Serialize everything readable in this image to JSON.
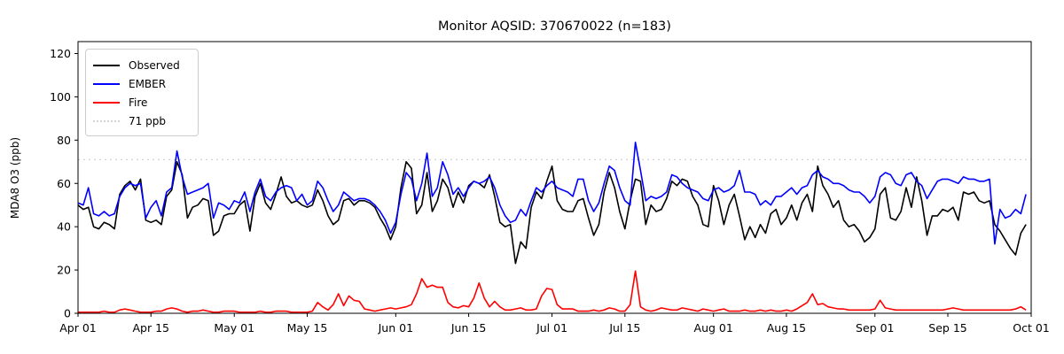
{
  "title": "Monitor AQSID: 370670022 (n=183)",
  "legend": {
    "items": [
      {
        "label": "Observed",
        "color": "#000000",
        "style": "solid"
      },
      {
        "label": "EMBER",
        "color": "#0000ff",
        "style": "solid"
      },
      {
        "label": "Fire",
        "color": "#ff0000",
        "style": "solid"
      },
      {
        "label": "71 ppb",
        "color": "#d3d3d3",
        "style": "dotted"
      }
    ]
  },
  "chart_data": {
    "type": "line",
    "title": "Monitor AQSID: 370670022 (n=183)",
    "xlabel": "",
    "ylabel": "MDA8 O3 (ppb)",
    "n_points": 183,
    "x_start": "Apr 01",
    "x_end": "Oct 01",
    "x_tick_labels": [
      "Apr 01",
      "Apr 15",
      "May 01",
      "May 15",
      "Jun 01",
      "Jun 15",
      "Jul 01",
      "Jul 15",
      "Aug 01",
      "Aug 15",
      "Sep 01",
      "Sep 15",
      "Oct 01"
    ],
    "x_tick_days": [
      0,
      14,
      30,
      44,
      61,
      75,
      91,
      105,
      122,
      136,
      153,
      167,
      183
    ],
    "y_ticks": [
      0,
      20,
      40,
      60,
      80,
      100,
      120
    ],
    "ylim": [
      0,
      125.5
    ],
    "grid": false,
    "legend_position": "upper left",
    "threshold": {
      "value": 71,
      "label": "71 ppb",
      "color": "#d3d3d3",
      "style": "dotted"
    },
    "series": [
      {
        "name": "Observed",
        "color": "#000000",
        "values": [
          50,
          48,
          49,
          40,
          39,
          42,
          41,
          39,
          55,
          59,
          61,
          57,
          62,
          43,
          42,
          43,
          41,
          54,
          57,
          70,
          64,
          44,
          49,
          50,
          53,
          52,
          36,
          38,
          45,
          46,
          46,
          50,
          52,
          38,
          54,
          60,
          51,
          48,
          55,
          63,
          54,
          51,
          52,
          50,
          49,
          50,
          57,
          52,
          45,
          41,
          43,
          52,
          53,
          50,
          52,
          52,
          51,
          49,
          44,
          40,
          34,
          40,
          58,
          70,
          67,
          46,
          50,
          65,
          47,
          52,
          62,
          58,
          49,
          56,
          51,
          59,
          61,
          60,
          58,
          64,
          54,
          42,
          40,
          41,
          23,
          33,
          30,
          49,
          56,
          53,
          61,
          68,
          52,
          48,
          47,
          47,
          52,
          53,
          44,
          36,
          41,
          56,
          65,
          58,
          47,
          39,
          52,
          62,
          61,
          41,
          50,
          47,
          48,
          53,
          61,
          59,
          62,
          61,
          54,
          50,
          41,
          40,
          59,
          52,
          41,
          50,
          55,
          45,
          34,
          40,
          35,
          41,
          37,
          46,
          48,
          41,
          44,
          50,
          43,
          51,
          55,
          47,
          68,
          59,
          55,
          49,
          52,
          43,
          40,
          41,
          38,
          33,
          35,
          39,
          55,
          58,
          44,
          43,
          47,
          58,
          49,
          63,
          52,
          36,
          45,
          45,
          48,
          47,
          49,
          43,
          56,
          55,
          56,
          52,
          51,
          52,
          41,
          38,
          34,
          30,
          27,
          37,
          41
        ]
      },
      {
        "name": "EMBER",
        "color": "#0000ff",
        "values": [
          51,
          50,
          58,
          46,
          45,
          47,
          45,
          46,
          54,
          58,
          60,
          59,
          60,
          44,
          49,
          52,
          45,
          56,
          58,
          75,
          63,
          55,
          56,
          57,
          58,
          60,
          44,
          51,
          50,
          48,
          52,
          51,
          56,
          47,
          56,
          62,
          54,
          52,
          56,
          58,
          59,
          58,
          52,
          55,
          50,
          52,
          61,
          58,
          52,
          47,
          50,
          56,
          54,
          52,
          53,
          53,
          52,
          50,
          47,
          43,
          37,
          42,
          55,
          65,
          62,
          52,
          60,
          74,
          54,
          58,
          70,
          64,
          55,
          58,
          54,
          58,
          61,
          60,
          61,
          63,
          58,
          50,
          45,
          42,
          43,
          48,
          45,
          52,
          58,
          56,
          59,
          61,
          58,
          57,
          56,
          54,
          62,
          62,
          52,
          47,
          51,
          60,
          68,
          66,
          58,
          52,
          50,
          79,
          66,
          52,
          54,
          53,
          54,
          56,
          64,
          63,
          60,
          58,
          57,
          56,
          53,
          52,
          57,
          58,
          56,
          57,
          59,
          66,
          56,
          56,
          55,
          50,
          52,
          50,
          54,
          54,
          56,
          58,
          55,
          58,
          59,
          64,
          66,
          63,
          62,
          60,
          60,
          59,
          57,
          56,
          56,
          54,
          51,
          54,
          63,
          65,
          64,
          60,
          59,
          64,
          65,
          61,
          59,
          53,
          57,
          61,
          62,
          62,
          61,
          60,
          63,
          62,
          62,
          61,
          61,
          62,
          32,
          48,
          44,
          45,
          48,
          46,
          55
        ]
      },
      {
        "name": "Fire",
        "color": "#ff0000",
        "values": [
          0.5,
          0.5,
          0.5,
          0.5,
          0.5,
          1,
          0.5,
          0.5,
          1.5,
          2,
          1.5,
          1,
          0.5,
          0.5,
          0.5,
          1,
          1,
          2,
          2.5,
          2,
          1,
          0.5,
          1,
          1,
          1.5,
          1,
          0.5,
          0.5,
          1,
          1,
          1,
          0.5,
          0.5,
          0.5,
          0.5,
          1,
          0.5,
          0.5,
          1,
          1,
          1,
          0.5,
          0.5,
          0.5,
          0.5,
          1,
          5,
          3,
          1.5,
          4,
          9,
          3.5,
          8,
          6,
          5.5,
          2,
          1.5,
          1,
          1.5,
          2,
          2.5,
          2,
          2.5,
          3,
          4,
          9,
          16,
          12,
          13,
          12,
          12,
          5,
          3,
          2.5,
          3.5,
          3,
          7,
          14,
          7,
          3,
          5.5,
          3,
          1.5,
          1.5,
          2,
          2.5,
          1.5,
          1.5,
          2,
          8,
          11.5,
          11,
          4,
          2,
          2,
          2,
          1,
          1,
          1,
          1.5,
          1,
          1.5,
          2.5,
          2,
          1,
          1,
          4,
          19.5,
          3,
          1.5,
          1,
          1.5,
          2.5,
          2,
          1.5,
          1.5,
          2.5,
          2,
          1.5,
          1,
          2,
          1.5,
          1,
          1.5,
          2,
          1,
          1,
          1,
          1.5,
          1,
          1,
          1.5,
          1,
          1.5,
          1,
          1,
          1.5,
          1,
          2,
          3.5,
          5,
          9,
          4,
          4.5,
          3,
          2.5,
          2,
          2,
          1.5,
          1.5,
          1.5,
          1.5,
          1.5,
          2,
          6,
          2.5,
          2,
          1.5,
          1.5,
          1.5,
          1.5,
          1.5,
          1.5,
          1.5,
          1.5,
          1.5,
          1.5,
          2,
          2.5,
          2,
          1.5,
          1.5,
          1.5,
          1.5,
          1.5,
          1.5,
          1.5,
          1.5,
          1.5,
          1.5,
          2,
          3,
          1.5
        ]
      }
    ]
  }
}
